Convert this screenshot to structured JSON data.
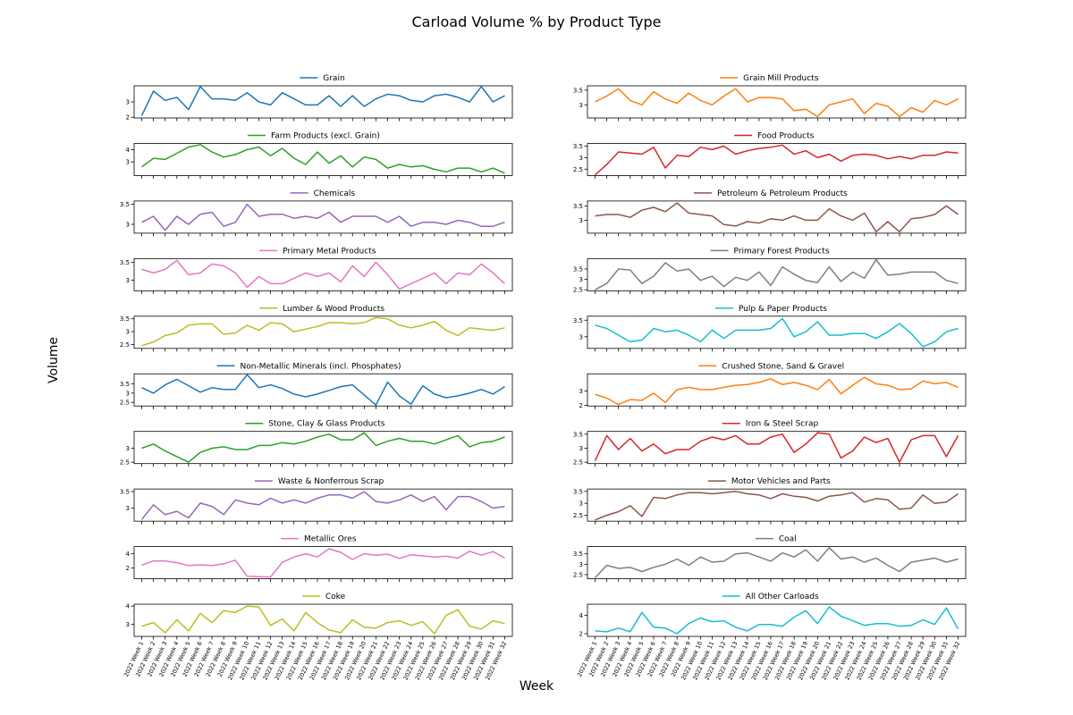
{
  "figure": {
    "title": "Carload Volume % by Product Type",
    "xlabel": "Week",
    "ylabel": "Volume"
  },
  "chart_data": {
    "type": "line",
    "grid": false,
    "layout": "10x2 small multiples",
    "categories": [
      "2022 Week 1",
      "2022 Week 2",
      "2022 Week 3",
      "2022 Week 4",
      "2022 Week 5",
      "2022 Week 6",
      "2022 Week 7",
      "2022 Week 8",
      "2022 Week 9",
      "2022 Week 10",
      "2022 Week 11",
      "2022 Week 12",
      "2022 Week 13",
      "2022 Week 14",
      "2022 Week 15",
      "2022 Week 16",
      "2022 Week 17",
      "2022 Week 18",
      "2022 Week 19",
      "2022 Week 20",
      "2022 Week 21",
      "2022 Week 22",
      "2022 Week 23",
      "2022 Week 24",
      "2022 Week 25",
      "2022 Week 26",
      "2022 Week 27",
      "2022 Week 28",
      "2022 Week 29",
      "2022 Week 30",
      "2022 Week 31",
      "2022 Week 32"
    ],
    "series": [
      {
        "name": "Grain",
        "color": "#1f77b4",
        "yticks": [
          2,
          3
        ],
        "ylim": [
          1.95,
          4.05
        ],
        "values": [
          2.1,
          3.7,
          3.1,
          3.3,
          2.5,
          4.0,
          3.2,
          3.2,
          3.1,
          3.6,
          3.0,
          2.8,
          3.6,
          3.2,
          2.8,
          2.8,
          3.4,
          2.7,
          3.4,
          2.7,
          3.2,
          3.5,
          3.4,
          3.1,
          3.0,
          3.4,
          3.5,
          3.3,
          3.0,
          4.0,
          3.0,
          3.4
        ]
      },
      {
        "name": "Grain Mill Products",
        "color": "#ff7f0e",
        "yticks": [
          3.0,
          3.5
        ],
        "ylim": [
          2.55,
          3.65
        ],
        "values": [
          3.1,
          3.3,
          3.55,
          3.15,
          3.0,
          3.45,
          3.2,
          3.05,
          3.4,
          3.15,
          3.0,
          3.3,
          3.55,
          3.1,
          3.25,
          3.25,
          3.2,
          2.8,
          2.85,
          2.6,
          3.0,
          3.1,
          3.2,
          2.7,
          3.05,
          2.95,
          2.6,
          2.9,
          2.75,
          3.15,
          3.0,
          3.2
        ]
      },
      {
        "name": "Farm Products (excl. Grain)",
        "color": "#2ca02c",
        "yticks": [
          3,
          4
        ],
        "ylim": [
          1.9,
          4.5
        ],
        "values": [
          2.6,
          3.3,
          3.2,
          3.7,
          4.2,
          4.4,
          3.8,
          3.4,
          3.6,
          4.0,
          4.2,
          3.5,
          4.1,
          3.3,
          2.8,
          3.8,
          2.9,
          3.5,
          2.6,
          3.4,
          3.2,
          2.5,
          2.8,
          2.6,
          2.7,
          2.4,
          2.2,
          2.5,
          2.5,
          2.2,
          2.5,
          2.1
        ]
      },
      {
        "name": "Food Products",
        "color": "#d62728",
        "yticks": [
          2.5,
          3.0,
          3.5
        ],
        "ylim": [
          2.22,
          3.62
        ],
        "values": [
          2.25,
          2.7,
          3.25,
          3.2,
          3.15,
          3.45,
          2.55,
          3.1,
          3.05,
          3.45,
          3.35,
          3.5,
          3.15,
          3.3,
          3.4,
          3.45,
          3.55,
          3.15,
          3.3,
          3.0,
          3.15,
          2.85,
          3.1,
          3.15,
          3.1,
          2.95,
          3.05,
          2.95,
          3.1,
          3.1,
          3.25,
          3.2
        ]
      },
      {
        "name": "Chemicals",
        "color": "#9467bd",
        "yticks": [
          3.0,
          3.5
        ],
        "ylim": [
          2.78,
          3.58
        ],
        "values": [
          3.05,
          3.2,
          2.85,
          3.2,
          3.0,
          3.25,
          3.3,
          2.95,
          3.05,
          3.5,
          3.2,
          3.25,
          3.25,
          3.15,
          3.2,
          3.15,
          3.3,
          3.05,
          3.2,
          3.2,
          3.2,
          3.05,
          3.2,
          2.95,
          3.05,
          3.05,
          3.0,
          3.1,
          3.05,
          2.95,
          2.95,
          3.05
        ]
      },
      {
        "name": "Petroleum & Petroleum Products",
        "color": "#8c564b",
        "yticks": [
          3.0,
          3.5
        ],
        "ylim": [
          2.55,
          3.67
        ],
        "values": [
          3.15,
          3.2,
          3.2,
          3.1,
          3.35,
          3.45,
          3.3,
          3.6,
          3.25,
          3.2,
          3.15,
          2.85,
          2.8,
          2.95,
          2.9,
          3.05,
          3.0,
          3.15,
          3.0,
          3.0,
          3.4,
          3.15,
          3.0,
          3.25,
          2.6,
          2.95,
          2.6,
          3.05,
          3.1,
          3.2,
          3.5,
          3.2
        ]
      },
      {
        "name": "Primary Metal Products",
        "color": "#e377c2",
        "yticks": [
          3.0,
          3.5
        ],
        "ylim": [
          2.7,
          3.6
        ],
        "values": [
          3.3,
          3.2,
          3.3,
          3.55,
          3.15,
          3.2,
          3.45,
          3.4,
          3.2,
          2.8,
          3.1,
          2.9,
          2.9,
          3.05,
          3.2,
          3.1,
          3.2,
          2.95,
          3.4,
          3.1,
          3.5,
          3.15,
          2.75,
          2.9,
          3.05,
          3.2,
          2.9,
          3.2,
          3.15,
          3.45,
          3.2,
          2.9
        ]
      },
      {
        "name": "Primary Forest Products",
        "color": "#7f7f7f",
        "yticks": [
          2.5,
          3.0,
          3.5
        ],
        "ylim": [
          2.45,
          4.0
        ],
        "values": [
          2.5,
          2.8,
          3.5,
          3.45,
          2.8,
          3.15,
          3.8,
          3.4,
          3.5,
          2.95,
          3.15,
          2.65,
          3.1,
          2.95,
          3.35,
          2.7,
          3.6,
          3.25,
          2.95,
          2.85,
          3.6,
          2.9,
          3.35,
          3.05,
          3.95,
          3.2,
          3.25,
          3.35,
          3.35,
          3.35,
          2.95,
          2.8
        ]
      },
      {
        "name": "Lumber & Wood Products",
        "color": "#bcbd22",
        "yticks": [
          2.5,
          3.0,
          3.5
        ],
        "ylim": [
          2.35,
          3.6
        ],
        "values": [
          2.45,
          2.6,
          2.85,
          2.95,
          3.25,
          3.3,
          3.3,
          2.9,
          2.95,
          3.25,
          3.05,
          3.35,
          3.3,
          3.0,
          3.1,
          3.2,
          3.35,
          3.35,
          3.3,
          3.35,
          3.55,
          3.5,
          3.25,
          3.15,
          3.25,
          3.4,
          3.05,
          2.85,
          3.15,
          3.1,
          3.05,
          3.15
        ]
      },
      {
        "name": "Pulp & Paper Products",
        "color": "#17becf",
        "yticks": [
          3.0,
          3.5
        ],
        "ylim": [
          2.65,
          3.62
        ],
        "values": [
          3.35,
          3.25,
          3.05,
          2.85,
          2.9,
          3.25,
          3.15,
          3.2,
          3.05,
          2.85,
          3.2,
          2.95,
          3.2,
          3.2,
          3.2,
          3.25,
          3.55,
          3.0,
          3.15,
          3.45,
          3.05,
          3.05,
          3.1,
          3.1,
          2.95,
          3.15,
          3.4,
          3.1,
          2.7,
          2.85,
          3.15,
          3.25
        ]
      },
      {
        "name": "Non-Metallic Minerals (incl. Phosphates)",
        "color": "#1f77b4",
        "yticks": [
          2.5,
          3.0,
          3.5
        ],
        "ylim": [
          2.3,
          4.05
        ],
        "values": [
          3.3,
          3.0,
          3.45,
          3.75,
          3.4,
          3.05,
          3.3,
          3.2,
          3.2,
          4.0,
          3.3,
          3.45,
          3.25,
          2.95,
          2.8,
          2.95,
          3.15,
          3.35,
          3.45,
          2.9,
          2.35,
          3.6,
          2.85,
          2.4,
          3.4,
          2.95,
          2.75,
          2.85,
          3.0,
          3.2,
          2.95,
          3.35
        ]
      },
      {
        "name": "Crushed Stone, Sand & Gravel",
        "color": "#ff7f0e",
        "yticks": [
          2,
          3
        ],
        "ylim": [
          1.95,
          4.2
        ],
        "values": [
          2.75,
          2.5,
          2.05,
          2.4,
          2.35,
          2.85,
          2.2,
          3.1,
          3.25,
          3.1,
          3.1,
          3.25,
          3.4,
          3.45,
          3.6,
          3.85,
          3.45,
          3.6,
          3.4,
          3.1,
          3.8,
          2.8,
          3.4,
          3.95,
          3.5,
          3.4,
          3.1,
          3.15,
          3.7,
          3.5,
          3.6,
          3.25
        ]
      },
      {
        "name": "Stone, Clay & Glass Products",
        "color": "#2ca02c",
        "yticks": [
          2.5,
          3.0
        ],
        "ylim": [
          2.45,
          3.6
        ],
        "values": [
          3.0,
          3.15,
          2.9,
          2.7,
          2.5,
          2.85,
          3.0,
          3.05,
          2.95,
          2.95,
          3.1,
          3.1,
          3.2,
          3.15,
          3.25,
          3.4,
          3.5,
          3.3,
          3.3,
          3.55,
          3.1,
          3.25,
          3.35,
          3.25,
          3.25,
          3.15,
          3.3,
          3.45,
          3.05,
          3.2,
          3.25,
          3.4
        ]
      },
      {
        "name": "Iron & Steel Scrap",
        "color": "#d62728",
        "yticks": [
          2.5,
          3.0,
          3.5
        ],
        "ylim": [
          2.45,
          3.6
        ],
        "values": [
          2.55,
          3.45,
          2.95,
          3.35,
          2.9,
          3.15,
          2.8,
          2.95,
          2.95,
          3.25,
          3.4,
          3.3,
          3.45,
          3.15,
          3.15,
          3.4,
          3.5,
          2.85,
          3.15,
          3.55,
          3.5,
          2.65,
          2.9,
          3.4,
          3.2,
          3.35,
          2.5,
          3.3,
          3.45,
          3.45,
          2.7,
          3.45
        ]
      },
      {
        "name": "Waste & Nonferrous Scrap",
        "color": "#9467bd",
        "yticks": [
          3.0,
          3.5
        ],
        "ylim": [
          2.6,
          3.58
        ],
        "values": [
          2.65,
          3.1,
          2.8,
          2.9,
          2.7,
          3.15,
          3.05,
          2.8,
          3.25,
          3.15,
          3.1,
          3.3,
          3.15,
          3.25,
          3.15,
          3.3,
          3.4,
          3.4,
          3.3,
          3.5,
          3.2,
          3.15,
          3.25,
          3.4,
          3.2,
          3.35,
          2.95,
          3.35,
          3.35,
          3.2,
          3.0,
          3.05
        ]
      },
      {
        "name": "Motor Vehicles and Parts",
        "color": "#8c564b",
        "yticks": [
          2.5,
          3.0,
          3.5
        ],
        "ylim": [
          2.25,
          3.6
        ],
        "values": [
          2.3,
          2.5,
          2.65,
          2.9,
          2.45,
          3.25,
          3.2,
          3.35,
          3.45,
          3.45,
          3.4,
          3.45,
          3.5,
          3.4,
          3.35,
          3.2,
          3.4,
          3.3,
          3.25,
          3.1,
          3.3,
          3.35,
          3.45,
          3.05,
          3.2,
          3.15,
          2.75,
          2.8,
          3.35,
          3.0,
          3.05,
          3.4
        ]
      },
      {
        "name": "Metallic Ores",
        "color": "#e377c2",
        "yticks": [
          2,
          4
        ],
        "ylim": [
          0.5,
          5.0
        ],
        "values": [
          2.4,
          3.0,
          3.0,
          2.75,
          2.35,
          2.45,
          2.35,
          2.6,
          3.1,
          0.85,
          0.8,
          0.75,
          2.8,
          3.55,
          4.0,
          3.55,
          4.7,
          4.2,
          3.2,
          4.0,
          3.8,
          3.95,
          3.35,
          3.85,
          3.7,
          3.55,
          3.65,
          3.4,
          4.35,
          3.8,
          4.3,
          3.4
        ]
      },
      {
        "name": "Coal",
        "color": "#7f7f7f",
        "yticks": [
          2.5,
          3.0,
          3.5
        ],
        "ylim": [
          2.3,
          3.85
        ],
        "values": [
          2.35,
          2.95,
          2.8,
          2.85,
          2.65,
          2.85,
          3.0,
          3.25,
          2.95,
          3.35,
          3.1,
          3.15,
          3.5,
          3.55,
          3.35,
          3.15,
          3.55,
          3.35,
          3.7,
          3.15,
          3.8,
          3.25,
          3.35,
          3.1,
          3.3,
          2.95,
          2.65,
          3.1,
          3.2,
          3.3,
          3.1,
          3.25
        ]
      },
      {
        "name": "Coke",
        "color": "#bcbd22",
        "yticks": [
          3,
          4
        ],
        "ylim": [
          2.35,
          4.1
        ],
        "values": [
          2.9,
          3.1,
          2.55,
          3.25,
          2.65,
          3.6,
          3.1,
          3.75,
          3.65,
          4.0,
          3.95,
          2.95,
          3.3,
          2.65,
          3.65,
          3.1,
          2.7,
          2.55,
          3.25,
          2.85,
          2.8,
          3.1,
          3.2,
          2.95,
          3.15,
          2.5,
          3.5,
          3.8,
          2.9,
          2.75,
          3.2,
          3.05
        ]
      },
      {
        "name": "All Other Carloads",
        "color": "#17becf",
        "yticks": [
          2,
          4
        ],
        "ylim": [
          1.7,
          5.2
        ],
        "values": [
          2.3,
          2.2,
          2.6,
          2.2,
          4.3,
          2.7,
          2.6,
          2.0,
          3.1,
          3.7,
          3.3,
          3.4,
          2.7,
          2.3,
          3.0,
          3.0,
          2.8,
          3.8,
          4.5,
          3.1,
          4.9,
          3.9,
          3.4,
          2.9,
          3.1,
          3.1,
          2.8,
          2.9,
          3.5,
          3.0,
          4.8,
          2.5
        ]
      }
    ]
  }
}
